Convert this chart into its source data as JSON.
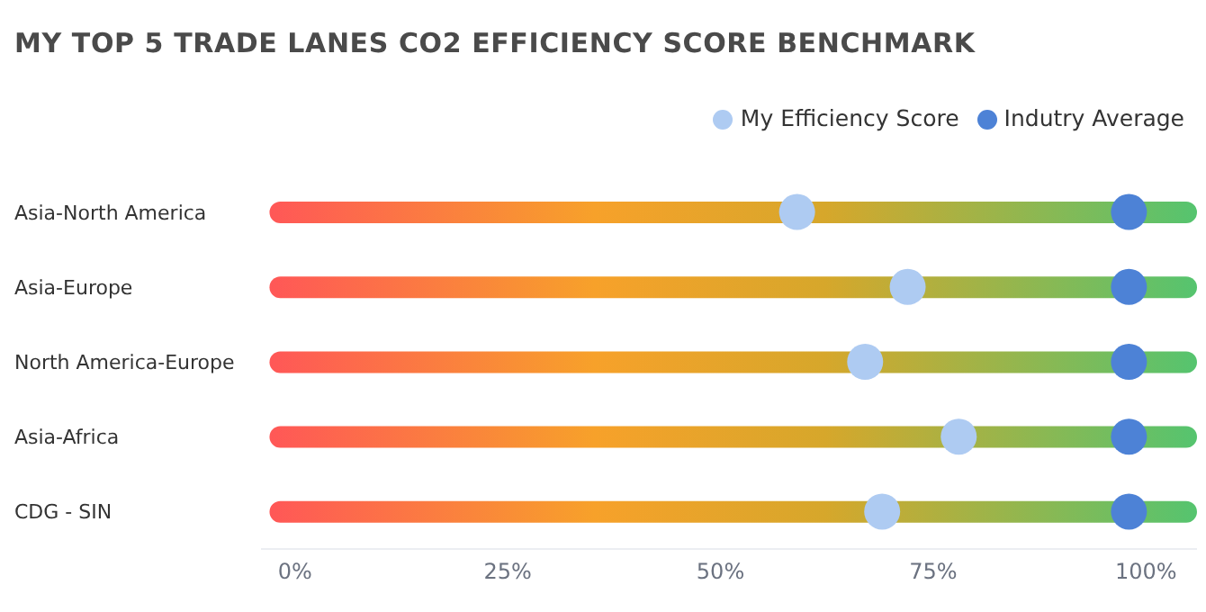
{
  "chart_data": {
    "type": "scatter",
    "title": "MY TOP 5 TRADE LANES CO2 EFFICIENCY SCORE BENCHMARK",
    "orientation": "horizontal",
    "categories": [
      "Asia-North America",
      "Asia-Europe",
      "North America-Europe",
      "Asia-Africa",
      "CDG - SIN"
    ],
    "series": [
      {
        "type": "bar",
        "color": "#d6a72b",
        "base": [
          -3,
          -3,
          -3,
          -3,
          -3
        ],
        "values": [
          109,
          109,
          109,
          109,
          109
        ]
      },
      {
        "name": "My Efficiency Score",
        "color": "#aecbf2",
        "values": [
          59,
          72,
          67,
          78,
          69
        ]
      },
      {
        "name": "Indutry Average",
        "color": "#4d82d6",
        "values": [
          98,
          98,
          98,
          98,
          98
        ]
      }
    ],
    "xlim": [
      -4,
      106
    ],
    "xticks": [
      {
        "value": 0,
        "label": "0%"
      },
      {
        "value": 25,
        "label": "25%"
      },
      {
        "value": 50,
        "label": "50%"
      },
      {
        "value": 75,
        "label": "75%"
      },
      {
        "value": 100,
        "label": "100%"
      }
    ],
    "legend": "top right",
    "marker": "circle"
  }
}
